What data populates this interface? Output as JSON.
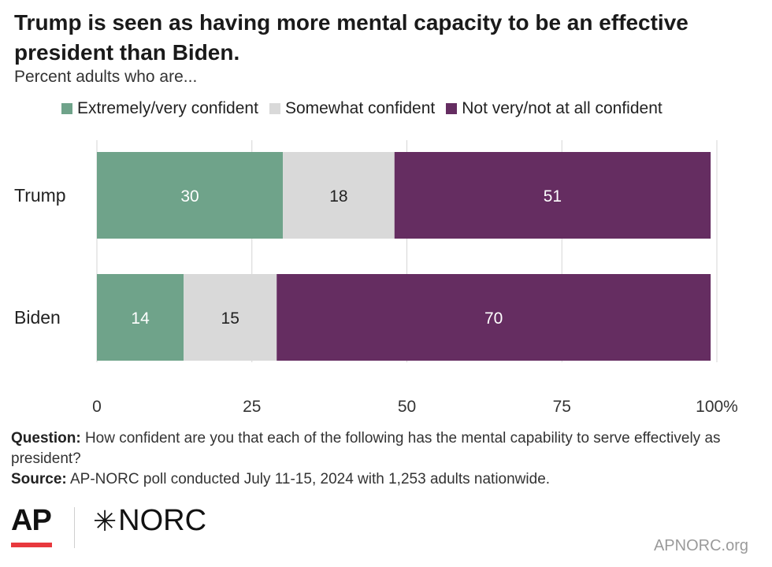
{
  "chart_data": {
    "type": "bar",
    "orientation": "horizontal",
    "stacked": true,
    "title": "Trump is seen as having more mental capacity to be an effective president than Biden.",
    "subtitle": "Percent adults who are...",
    "categories": [
      "Trump",
      "Biden"
    ],
    "series": [
      {
        "name": "Extremely/very confident",
        "color": "#6fa38a",
        "label_color": "#ffffff",
        "values": [
          30,
          14
        ]
      },
      {
        "name": "Somewhat confident",
        "color": "#d9d9d9",
        "label_color": "#222222",
        "values": [
          18,
          15
        ]
      },
      {
        "name": "Not very/not at all confident",
        "color": "#652d61",
        "label_color": "#ffffff",
        "values": [
          51,
          70
        ]
      }
    ],
    "xlim": [
      0,
      100
    ],
    "xticks": [
      0,
      25,
      50,
      75,
      100
    ],
    "xtick_labels": [
      "0",
      "25",
      "50",
      "75",
      "100%"
    ],
    "grid": true,
    "legend_position": "top"
  },
  "notes": {
    "question_label": "Question:",
    "question_text": "How confident are you that each of the following has the mental capability to serve effectively as president?",
    "source_label": "Source:",
    "source_text": "AP-NORC poll conducted July 11-15, 2024 with 1,253 adults nationwide."
  },
  "branding": {
    "ap_logo": "AP",
    "norc_logo": "NORC",
    "norc_mark_icon": "asterisk-icon",
    "site": "APNORC.org"
  }
}
